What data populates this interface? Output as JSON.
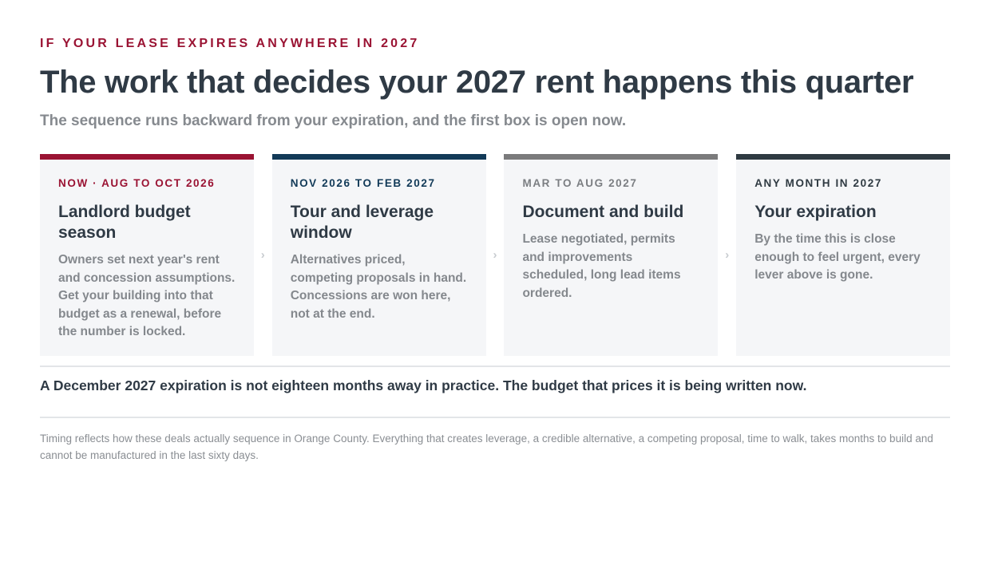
{
  "eyebrow": "IF YOUR LEASE EXPIRES ANYWHERE IN 2027",
  "title": "The work that decides your 2027 rent happens this quarter",
  "subtitle": "The sequence runs backward from your expiration, and the first box is open now.",
  "colors": {
    "accent_red": "#9a1333",
    "accent_navy": "#123a58",
    "accent_gray": "#7b7b7c",
    "accent_charcoal": "#2f3a42"
  },
  "separator_icon": "chevron-right-icon",
  "separator_glyph": "›",
  "cards": [
    {
      "label": "NOW · AUG TO OCT 2026",
      "title": "Landlord budget season",
      "body": "Owners set next year's rent and concession assumptions. Get your building into that budget as a renewal, before the number is locked."
    },
    {
      "label": "NOV 2026 TO FEB 2027",
      "title": "Tour and leverage window",
      "body": "Alternatives priced, competing proposals in hand. Concessions are won here, not at the end."
    },
    {
      "label": "MAR TO AUG 2027",
      "title": "Document and build",
      "body": "Lease negotiated, permits and improvements scheduled, long lead items ordered."
    },
    {
      "label": "ANY MONTH IN 2027",
      "title": "Your expiration",
      "body": "By the time this is close enough to feel urgent, every lever above is gone."
    }
  ],
  "callout": "A December 2027 expiration is not eighteen months away in practice. The budget that prices it is being written now.",
  "footnote": "Timing reflects how these deals actually sequence in Orange County. Everything that creates leverage, a credible alternative, a competing proposal, time to walk, takes months to build and cannot be manufactured in the last sixty days."
}
